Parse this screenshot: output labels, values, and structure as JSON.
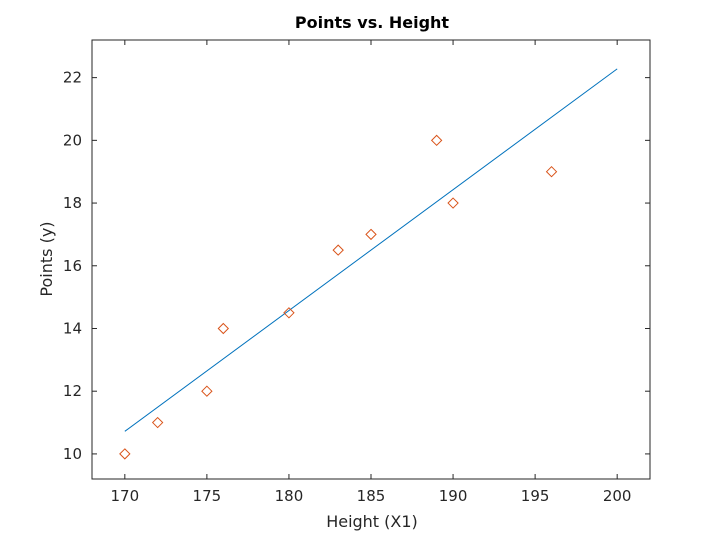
{
  "chart_data": {
    "type": "scatter",
    "title": "Points vs. Height",
    "xlabel": "Height (X1)",
    "ylabel": "Points (y)",
    "xlim": [
      168,
      202
    ],
    "ylim": [
      9.2,
      23.2
    ],
    "x_ticks": [
      170,
      175,
      180,
      185,
      190,
      195,
      200
    ],
    "y_ticks": [
      10,
      12,
      14,
      16,
      18,
      20,
      22
    ],
    "grid": false,
    "legend": "none",
    "series": [
      {
        "type": "scatter",
        "marker": "diamond",
        "color": "#D95319",
        "x": [
          170,
          172,
          175,
          176,
          180,
          183,
          185,
          189,
          190,
          196
        ],
        "y": [
          10,
          11,
          12,
          14,
          14.5,
          16.5,
          17,
          20,
          18,
          19
        ]
      },
      {
        "type": "line",
        "color": "#0072BD",
        "x": [
          170,
          200
        ],
        "y": [
          10.72,
          22.28
        ]
      }
    ]
  }
}
